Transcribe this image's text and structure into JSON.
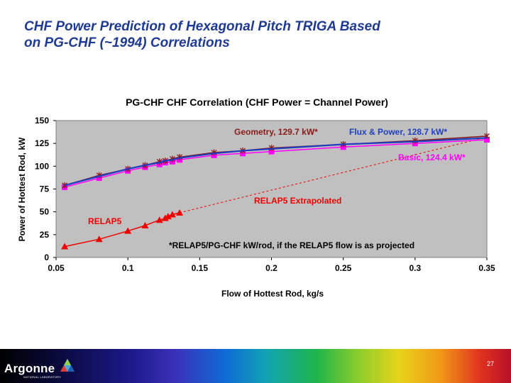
{
  "slide": {
    "title_line1": "CHF Power Prediction of Hexagonal Pitch TRIGA Based",
    "title_line2": "on PG-CHF (~1994) Correlations",
    "page_number": "27"
  },
  "footer": {
    "logo_text": "Argonne",
    "logo_subtext": "NATIONAL LABORATORY"
  },
  "colors": {
    "title": "#1f3a93",
    "plot_bg": "#c0c0c0",
    "geometry": "#8b1a1a",
    "flux_power": "#1f3fbf",
    "basic": "#ff00ff",
    "relap5": "#ee0000"
  },
  "chart_data": {
    "type": "line",
    "title": "PG-CHF CHF Correlation (CHF Power = Channel Power)",
    "xlabel": "Flow of Hottest Rod, kg/s",
    "ylabel": "Power of Hottest Rod, kW",
    "xlim": [
      0.05,
      0.35
    ],
    "ylim": [
      0,
      150
    ],
    "xticks": [
      0.05,
      0.1,
      0.15,
      0.2,
      0.25,
      0.3,
      0.35
    ],
    "xtick_labels": [
      "0.05",
      "0.1",
      "0.15",
      "0.2",
      "0.25",
      "0.3",
      "0.35"
    ],
    "yticks": [
      0,
      25,
      50,
      75,
      100,
      125,
      150
    ],
    "ytick_labels": [
      "0",
      "25",
      "50",
      "75",
      "100",
      "125",
      "150"
    ],
    "series": [
      {
        "name": "Geometry",
        "marker": "star",
        "x": [
          0.056,
          0.08,
          0.1,
          0.112,
          0.122,
          0.126,
          0.131,
          0.136,
          0.16,
          0.18,
          0.2,
          0.25,
          0.3,
          0.35
        ],
        "y": [
          79,
          90,
          97,
          101,
          105,
          106,
          108,
          110,
          115,
          117,
          120,
          124,
          128,
          133
        ]
      },
      {
        "name": "Flux & Power",
        "marker": "none",
        "x": [
          0.056,
          0.08,
          0.1,
          0.112,
          0.122,
          0.126,
          0.131,
          0.136,
          0.16,
          0.18,
          0.2,
          0.25,
          0.3,
          0.35
        ],
        "y": [
          79,
          89,
          97,
          101,
          104,
          106,
          107,
          109,
          114,
          117,
          119,
          124,
          127,
          131
        ]
      },
      {
        "name": "Basic",
        "marker": "square",
        "x": [
          0.056,
          0.08,
          0.1,
          0.112,
          0.122,
          0.126,
          0.131,
          0.136,
          0.16,
          0.18,
          0.2,
          0.25,
          0.3,
          0.35
        ],
        "y": [
          77,
          87,
          95,
          99,
          102,
          104,
          105,
          107,
          112,
          114,
          116,
          121,
          125,
          129
        ]
      },
      {
        "name": "RELAP5",
        "marker": "triangle",
        "x": [
          0.056,
          0.08,
          0.1,
          0.112,
          0.122,
          0.126,
          0.128,
          0.131,
          0.136
        ],
        "y": [
          12,
          20,
          29,
          35,
          41,
          43,
          45,
          47,
          49
        ]
      },
      {
        "name": "RELAP5 Extrapolated",
        "marker": "none",
        "dashed": true,
        "x": [
          0.136,
          0.35
        ],
        "y": [
          49,
          132
        ]
      }
    ],
    "annotations": [
      {
        "text": "Geometry, 129.7 kW*",
        "color": "#8b1a1a"
      },
      {
        "text": "Flux & Power, 128.7 kW*",
        "color": "#1f3fbf"
      },
      {
        "text": "Basic, 124.4 kW*",
        "color": "#ff00ff"
      },
      {
        "text": "RELAP5 Extrapolated",
        "color": "#ee0000"
      },
      {
        "text": "RELAP5",
        "color": "#ee0000"
      },
      {
        "text": "*RELAP5/PG-CHF kW/rod, if the RELAP5 flow is as projected",
        "color": "#000000"
      }
    ],
    "grid": false,
    "legend": "none"
  }
}
